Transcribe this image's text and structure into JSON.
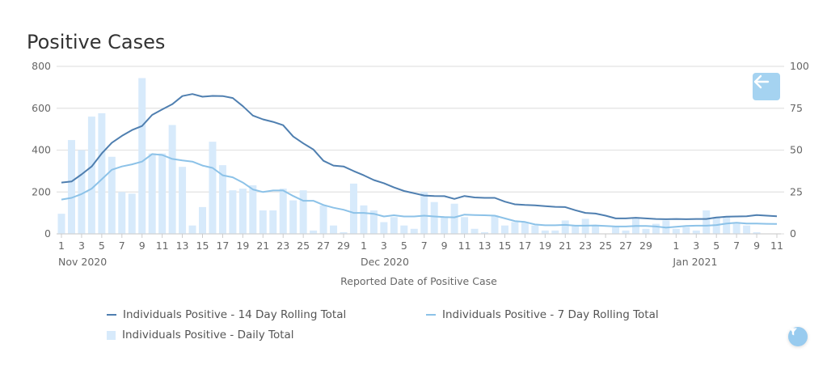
{
  "chart_data": {
    "type": "bar+line",
    "title": "Positive Cases",
    "xlabel": "Reported Date of Positive Case",
    "ylabel_left": "",
    "ylabel_right": "",
    "ylim_left": [
      0,
      800
    ],
    "ylim_right": [
      0,
      100
    ],
    "yticks_left": [
      "0",
      "200",
      "400",
      "600",
      "800"
    ],
    "yticks_right": [
      "0",
      "25",
      "50",
      "75",
      "100"
    ],
    "grid": true,
    "legend_position": "bottom",
    "month_labels": {
      "0": "Nov 2020",
      "30": "Dec 2020",
      "61": "Jan 2021"
    },
    "categories": [
      "Nov 1",
      "Nov 2",
      "Nov 3",
      "Nov 4",
      "Nov 5",
      "Nov 6",
      "Nov 7",
      "Nov 8",
      "Nov 9",
      "Nov 10",
      "Nov 11",
      "Nov 12",
      "Nov 13",
      "Nov 14",
      "Nov 15",
      "Nov 16",
      "Nov 17",
      "Nov 18",
      "Nov 19",
      "Nov 20",
      "Nov 21",
      "Nov 22",
      "Nov 23",
      "Nov 24",
      "Nov 25",
      "Nov 26",
      "Nov 27",
      "Nov 28",
      "Nov 29",
      "Nov 30",
      "Dec 1",
      "Dec 2",
      "Dec 3",
      "Dec 4",
      "Dec 5",
      "Dec 6",
      "Dec 7",
      "Dec 8",
      "Dec 9",
      "Dec 10",
      "Dec 11",
      "Dec 12",
      "Dec 13",
      "Dec 14",
      "Dec 15",
      "Dec 16",
      "Dec 17",
      "Dec 18",
      "Dec 19",
      "Dec 20",
      "Dec 21",
      "Dec 22",
      "Dec 23",
      "Dec 24",
      "Dec 25",
      "Dec 26",
      "Dec 27",
      "Dec 28",
      "Dec 29",
      "Dec 30",
      "Dec 31",
      "Jan 1",
      "Jan 2",
      "Jan 3",
      "Jan 4",
      "Jan 5",
      "Jan 6",
      "Jan 7",
      "Jan 8",
      "Jan 9",
      "Jan 10",
      "Jan 11"
    ],
    "series": [
      {
        "name": "Individuals Positive - 14 Day Rolling Total",
        "type": "line",
        "axis": "left",
        "color": "#4f7fb0",
        "values": [
          245,
          250,
          284,
          322,
          384,
          435,
          468,
          496,
          515,
          568,
          594,
          619,
          658,
          668,
          655,
          659,
          658,
          649,
          610,
          565,
          547,
          535,
          519,
          465,
          432,
          403,
          349,
          326,
          322,
          300,
          280,
          257,
          242,
          222,
          205,
          194,
          183,
          181,
          180,
          167,
          181,
          174,
          172,
          172,
          154,
          141,
          138,
          136,
          132,
          129,
          128,
          113,
          100,
          97,
          87,
          74,
          74,
          77,
          74,
          71,
          70,
          71,
          70,
          71,
          71,
          78,
          82,
          83,
          84,
          90,
          87,
          84
        ]
      },
      {
        "name": "Individuals Positive - 7 Day Rolling Total",
        "type": "line",
        "axis": "left",
        "color": "#8cc2e8",
        "values": [
          164,
          172,
          190,
          216,
          261,
          306,
          322,
          332,
          345,
          381,
          377,
          358,
          351,
          345,
          326,
          315,
          280,
          270,
          245,
          212,
          200,
          207,
          207,
          181,
          158,
          158,
          138,
          125,
          115,
          100,
          100,
          96,
          83,
          89,
          83,
          83,
          87,
          83,
          80,
          79,
          92,
          90,
          89,
          87,
          74,
          61,
          57,
          45,
          41,
          41,
          43,
          39,
          39,
          40,
          38,
          35,
          35,
          38,
          38,
          35,
          30,
          34,
          38,
          39,
          39,
          42,
          49,
          53,
          49,
          49,
          48,
          47
        ]
      },
      {
        "name": "Individuals Positive - Daily Total",
        "type": "bar",
        "axis": "right",
        "color": "#d7eafb",
        "values": [
          12,
          56,
          50,
          70,
          72,
          46,
          25,
          24,
          93,
          48,
          48,
          65,
          40,
          5,
          16,
          55,
          41,
          26,
          27,
          29,
          14,
          14,
          27,
          20,
          26,
          2,
          17,
          5,
          1,
          30,
          17,
          14,
          7,
          10,
          5,
          3,
          25,
          19,
          10,
          18,
          10,
          3,
          1,
          11,
          5,
          7,
          7,
          5,
          2,
          2,
          8,
          5,
          9,
          5,
          0,
          4,
          2,
          9,
          3,
          6,
          8,
          3,
          4,
          2,
          14,
          10,
          10,
          6,
          5,
          1,
          0,
          0
        ]
      }
    ]
  },
  "controls": {
    "back_icon": "arrow-left-icon",
    "filter_icon": "filter-icon"
  }
}
